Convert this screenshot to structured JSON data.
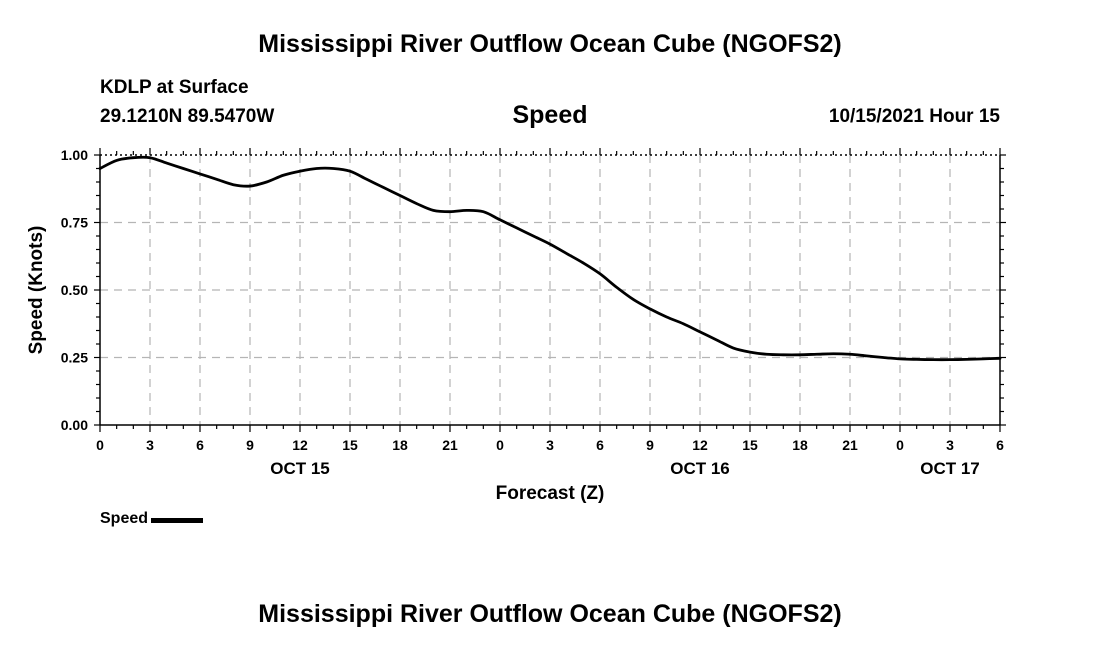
{
  "chart_data": {
    "type": "line",
    "title": "Mississippi River Outflow Ocean Cube (NGOFS2)",
    "station": "KDLP at Surface",
    "coordinates": "29.1210N  89.5470W",
    "parameter": "Speed",
    "date_label": "10/15/2021 Hour 15",
    "xlabel": "Forecast (Z)",
    "ylabel": "Speed (Knots)",
    "ylim": [
      0,
      1
    ],
    "y_ticks": [
      "0.00",
      "0.25",
      "0.50",
      "0.75",
      "1.00"
    ],
    "x_range_hours": [
      0,
      54
    ],
    "x_tick_labels": [
      "0",
      "3",
      "6",
      "9",
      "12",
      "15",
      "18",
      "21",
      "0",
      "3",
      "6",
      "9",
      "12",
      "15",
      "18",
      "21",
      "0",
      "3",
      "6"
    ],
    "day_labels": [
      {
        "label": "OCT 15",
        "hour": 12
      },
      {
        "label": "OCT 16",
        "hour": 36
      },
      {
        "label": "OCT 17",
        "hour": 51
      }
    ],
    "grid": true,
    "legend": {
      "position": "bottom-left",
      "entries": [
        "Speed"
      ]
    },
    "series": [
      {
        "name": "Speed",
        "color": "#000000",
        "x": [
          0,
          1,
          2,
          3,
          4,
          5,
          6,
          7,
          8,
          9,
          10,
          11,
          12,
          13,
          14,
          15,
          16,
          17,
          18,
          19,
          20,
          21,
          22,
          23,
          24,
          25,
          26,
          27,
          28,
          29,
          30,
          31,
          32,
          33,
          34,
          35,
          36,
          37,
          38,
          39,
          40,
          41,
          42,
          43,
          44,
          45,
          46,
          47,
          48,
          49,
          50,
          51,
          52,
          53,
          54
        ],
        "values": [
          0.95,
          0.98,
          0.99,
          0.99,
          0.97,
          0.95,
          0.93,
          0.91,
          0.89,
          0.885,
          0.9,
          0.925,
          0.94,
          0.95,
          0.95,
          0.94,
          0.91,
          0.88,
          0.85,
          0.82,
          0.795,
          0.79,
          0.795,
          0.79,
          0.76,
          0.73,
          0.7,
          0.67,
          0.635,
          0.6,
          0.56,
          0.51,
          0.465,
          0.43,
          0.4,
          0.375,
          0.345,
          0.315,
          0.285,
          0.27,
          0.262,
          0.26,
          0.26,
          0.262,
          0.264,
          0.262,
          0.256,
          0.25,
          0.245,
          0.243,
          0.242,
          0.242,
          0.243,
          0.245,
          0.247
        ]
      }
    ]
  },
  "footer_title": "Mississippi River Outflow Ocean Cube (NGOFS2)"
}
